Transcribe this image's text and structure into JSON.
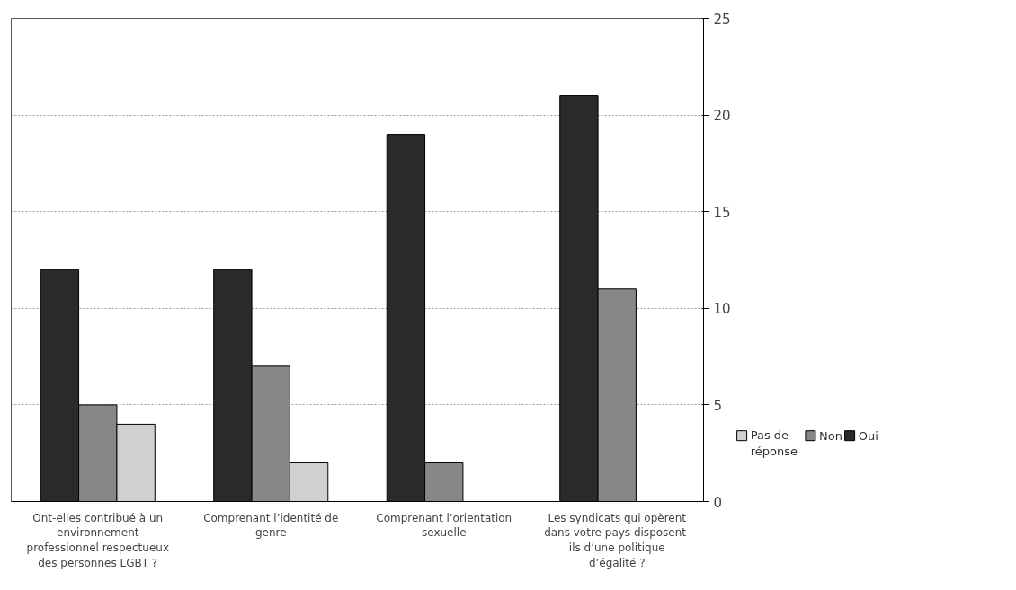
{
  "chart_data": {
    "type": "bar",
    "categories": [
      "Ont-elles contribué à un environnement professionnel respectueux des personnes LGBT ?",
      "Comprenant l’identité de genre",
      "Comprenant l’orientation sexuelle",
      "Les syndicats qui opèrent dans votre pays disposent-ils d’une politique d’égalité ?"
    ],
    "series": [
      {
        "name": "Oui",
        "color": "#2a2a2a",
        "values": [
          12,
          12,
          19,
          21
        ]
      },
      {
        "name": "Non",
        "color": "#878787",
        "values": [
          5,
          7,
          2,
          11
        ]
      },
      {
        "name": "Pas de réponse",
        "color": "#d0d0d0",
        "values": [
          4,
          2,
          0,
          0
        ]
      }
    ],
    "ylim": [
      0,
      25
    ],
    "yticks": [
      0,
      5,
      10,
      15,
      20,
      25
    ],
    "grid": "y",
    "legend": "bottom right"
  }
}
